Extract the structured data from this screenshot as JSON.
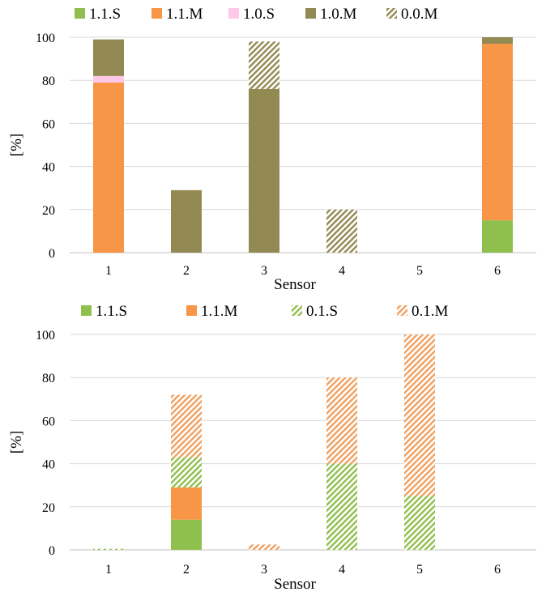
{
  "chart_data": [
    {
      "type": "bar",
      "stacked": true,
      "categories": [
        "1",
        "2",
        "3",
        "4",
        "5",
        "6"
      ],
      "xlabel": "Sensor",
      "ylabel": "[%]",
      "ylim": [
        0,
        100
      ],
      "yticks": [
        0,
        20,
        40,
        60,
        80,
        100
      ],
      "grid": true,
      "legend": "top",
      "series": [
        {
          "name": "1.1.S",
          "color": "#8fbf4d",
          "pattern": "solid",
          "values": [
            0,
            0,
            0,
            0,
            0,
            15
          ]
        },
        {
          "name": "1.1.M",
          "color": "#f79646",
          "pattern": "solid",
          "values": [
            79,
            0,
            0,
            0,
            0,
            82
          ]
        },
        {
          "name": "1.0.S",
          "color": "#ffc7e8",
          "pattern": "solid",
          "values": [
            3,
            0,
            0,
            0,
            0,
            0
          ]
        },
        {
          "name": "1.0.M",
          "color": "#938953",
          "pattern": "solid",
          "values": [
            17,
            29,
            76,
            0,
            0,
            3
          ]
        },
        {
          "name": "0.0.M",
          "color": "#938953",
          "pattern": "hatch",
          "values": [
            0,
            0,
            22,
            20,
            0,
            0
          ]
        }
      ]
    },
    {
      "type": "bar",
      "stacked": true,
      "categories": [
        "1",
        "2",
        "3",
        "4",
        "5",
        "6"
      ],
      "xlabel": "Sensor",
      "ylabel": "[%]",
      "ylim": [
        0,
        100
      ],
      "yticks": [
        0,
        20,
        40,
        60,
        80,
        100
      ],
      "grid": true,
      "legend": "top",
      "series": [
        {
          "name": "1.1.S",
          "color": "#8fbf4d",
          "pattern": "solid",
          "values": [
            0,
            14,
            0,
            0,
            0,
            0
          ]
        },
        {
          "name": "1.1.M",
          "color": "#f79646",
          "pattern": "solid",
          "values": [
            0,
            15,
            0,
            0,
            0,
            0
          ]
        },
        {
          "name": "0.1.S",
          "color": "#8fbf4d",
          "pattern": "hatch",
          "values": [
            0.5,
            14,
            0,
            40,
            25,
            0
          ]
        },
        {
          "name": "0.1.M",
          "color": "#f0a060",
          "pattern": "hatch",
          "values": [
            0,
            29,
            2.5,
            40,
            75,
            0
          ]
        }
      ]
    }
  ]
}
